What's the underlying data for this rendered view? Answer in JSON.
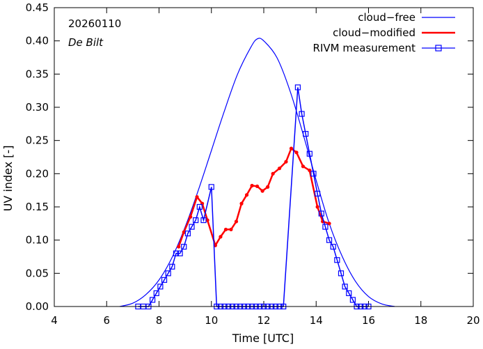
{
  "chart_data": {
    "type": "line",
    "xlabel": "Time  [UTC]",
    "ylabel": "UV index  [-]",
    "xlim": [
      4,
      20
    ],
    "ylim": [
      0,
      0.45
    ],
    "xticks": [
      4,
      6,
      8,
      10,
      12,
      14,
      16,
      18,
      20
    ],
    "xtick_labels": [
      "4",
      "6",
      "8",
      "10",
      "12",
      "14",
      "16",
      "18",
      "20"
    ],
    "yticks": [
      0,
      0.05,
      0.1,
      0.15,
      0.2,
      0.25,
      0.3,
      0.35,
      0.4,
      0.45
    ],
    "ytick_labels": [
      "0.00",
      "0.05",
      "0.10",
      "0.15",
      "0.20",
      "0.25",
      "0.30",
      "0.35",
      "0.40",
      "0.45"
    ],
    "annotations": {
      "date": "20260110",
      "location": "De Bilt"
    },
    "legend_position": "top-right",
    "series": [
      {
        "name": "cloud−free",
        "color": "#0000ff",
        "style": "line",
        "x": [
          6.5,
          7.0,
          7.5,
          8.0,
          8.5,
          9.0,
          9.5,
          10.0,
          10.5,
          11.0,
          11.5,
          11.75,
          12.0,
          12.5,
          13.0,
          13.5,
          14.0,
          14.5,
          15.0,
          15.5,
          16.0,
          16.5,
          17.0
        ],
        "y": [
          0.0,
          0.005,
          0.018,
          0.04,
          0.074,
          0.12,
          0.175,
          0.235,
          0.295,
          0.35,
          0.39,
          0.403,
          0.4,
          0.375,
          0.325,
          0.26,
          0.19,
          0.125,
          0.075,
          0.038,
          0.015,
          0.004,
          0.0
        ]
      },
      {
        "name": "cloud−modified",
        "color": "#ff0000",
        "style": "line-dots",
        "x": [
          8.75,
          8.95,
          9.2,
          9.45,
          9.65,
          9.85,
          10.15,
          10.35,
          10.55,
          10.75,
          10.95,
          11.15,
          11.35,
          11.55,
          11.75,
          11.95,
          12.15,
          12.35,
          12.6,
          12.85,
          13.05,
          13.25,
          13.5,
          13.75,
          14.05,
          14.25,
          14.5
        ],
        "y": [
          0.09,
          0.112,
          0.135,
          0.165,
          0.155,
          0.13,
          0.092,
          0.105,
          0.116,
          0.116,
          0.128,
          0.155,
          0.168,
          0.182,
          0.181,
          0.174,
          0.18,
          0.2,
          0.208,
          0.218,
          0.238,
          0.232,
          0.211,
          0.205,
          0.15,
          0.128,
          0.125
        ]
      },
      {
        "name": "RIVM measurement",
        "color": "#0000ff",
        "style": "line-squares",
        "x": [
          7.2,
          7.4,
          7.6,
          7.75,
          7.9,
          8.05,
          8.2,
          8.35,
          8.5,
          8.65,
          8.8,
          8.95,
          9.1,
          9.25,
          9.4,
          9.55,
          9.7,
          10.0,
          10.2,
          10.35,
          10.5,
          10.65,
          10.8,
          10.95,
          11.1,
          11.25,
          11.4,
          11.55,
          11.7,
          11.85,
          12.0,
          12.15,
          12.3,
          12.45,
          12.6,
          12.75,
          13.3,
          13.45,
          13.6,
          13.75,
          13.9,
          14.05,
          14.2,
          14.35,
          14.5,
          14.65,
          14.8,
          14.95,
          15.1,
          15.25,
          15.4,
          15.55,
          15.7,
          15.85,
          16.0
        ],
        "y": [
          0.0,
          0.0,
          0.0,
          0.01,
          0.02,
          0.03,
          0.04,
          0.05,
          0.06,
          0.08,
          0.08,
          0.09,
          0.11,
          0.12,
          0.13,
          0.15,
          0.13,
          0.18,
          0.0,
          0.0,
          0.0,
          0.0,
          0.0,
          0.0,
          0.0,
          0.0,
          0.0,
          0.0,
          0.0,
          0.0,
          0.0,
          0.0,
          0.0,
          0.0,
          0.0,
          0.0,
          0.33,
          0.29,
          0.26,
          0.23,
          0.2,
          0.17,
          0.14,
          0.12,
          0.1,
          0.09,
          0.07,
          0.05,
          0.03,
          0.02,
          0.01,
          0.0,
          0.0,
          0.0,
          0.0
        ]
      }
    ]
  }
}
